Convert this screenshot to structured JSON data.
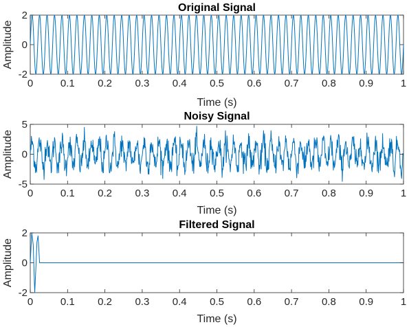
{
  "line_color": "#0072BD",
  "chart_data": [
    {
      "type": "line",
      "title": "Original Signal",
      "xlabel": "Time (s)",
      "ylabel": "Amplitude",
      "xlim": [
        0,
        1
      ],
      "ylim": [
        -2,
        2
      ],
      "xticks": [
        "0",
        "0.1",
        "0.2",
        "0.3",
        "0.4",
        "0.5",
        "0.6",
        "0.7",
        "0.8",
        "0.9",
        "1"
      ],
      "yticks": [
        "-2",
        "0",
        "2"
      ],
      "signal": {
        "kind": "sum_of_sines",
        "components": [
          {
            "amplitude": 1,
            "frequency_hz": 50
          },
          {
            "amplitude": 1,
            "frequency_hz": 50
          }
        ],
        "samples": 1000
      }
    },
    {
      "type": "line",
      "title": "Noisy Signal",
      "xlabel": "Time (s)",
      "ylabel": "Amplitude",
      "xlim": [
        0,
        1
      ],
      "ylim": [
        -5,
        5
      ],
      "xticks": [
        "0",
        "0.1",
        "0.2",
        "0.3",
        "0.4",
        "0.5",
        "0.6",
        "0.7",
        "0.8",
        "0.9",
        "1"
      ],
      "yticks": [
        "-5",
        "0",
        "5"
      ],
      "signal": {
        "kind": "sum_of_sines_plus_noise",
        "components": [
          {
            "amplitude": 1,
            "frequency_hz": 50
          },
          {
            "amplitude": 1,
            "frequency_hz": 50
          }
        ],
        "noise_std": 1,
        "samples": 1000
      }
    },
    {
      "type": "line",
      "title": "Filtered Signal",
      "xlabel": "Time (s)",
      "ylabel": "Amplitude",
      "xlim": [
        0,
        1
      ],
      "ylim": [
        -2,
        2
      ],
      "xticks": [
        "0",
        "0.1",
        "0.2",
        "0.3",
        "0.4",
        "0.5",
        "0.6",
        "0.7",
        "0.8",
        "0.9",
        "1"
      ],
      "yticks": [
        "-2",
        "0",
        "2"
      ],
      "x": [
        0,
        0.004,
        0.008,
        0.012,
        0.015,
        0.018,
        0.021,
        0.025,
        0.03,
        0.05,
        1
      ],
      "y": [
        0,
        2,
        1.2,
        -2,
        -0.4,
        1.4,
        1.8,
        0,
        0,
        0,
        0
      ]
    }
  ]
}
